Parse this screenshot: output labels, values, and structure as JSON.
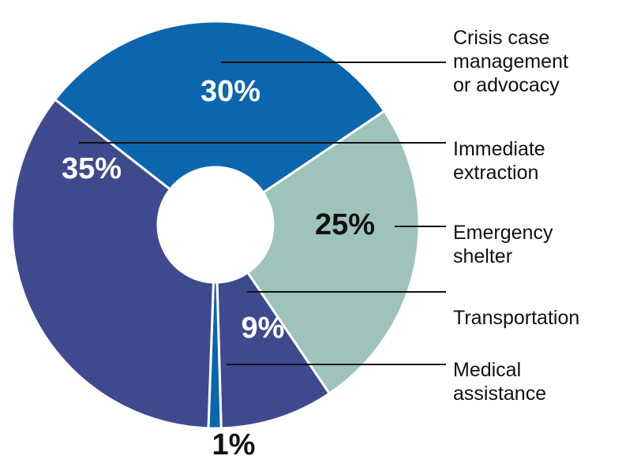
{
  "chart_data": {
    "type": "pie",
    "donut": true,
    "slices": [
      {
        "label": "Crisis case management or advocacy",
        "label_lines": [
          "Crisis case",
          "management",
          "or advocacy"
        ],
        "value": 30,
        "display": "30%",
        "color": "#0B66AD",
        "label_color": "#ffffff"
      },
      {
        "label": "Emergency shelter",
        "label_lines": [
          "Emergency",
          "shelter"
        ],
        "value": 25,
        "display": "25%",
        "color": "#9DC3BB",
        "label_color": "#111111"
      },
      {
        "label": "Transportation",
        "label_lines": [
          "Transportation"
        ],
        "value": 9,
        "display": "9%",
        "color": "#3F4A8E",
        "label_color": "#ffffff"
      },
      {
        "label": "Medical assistance",
        "label_lines": [
          "Medical",
          "assistance"
        ],
        "value": 1,
        "display": "1%",
        "color": "#0B66AD",
        "label_color": "#111111"
      },
      {
        "label": "Immediate extraction",
        "label_lines": [
          "Immediate",
          "extraction"
        ],
        "value": 35,
        "display": "35%",
        "color": "#3F4A8E",
        "label_color": "#ffffff"
      }
    ],
    "legend_placement": "right"
  }
}
